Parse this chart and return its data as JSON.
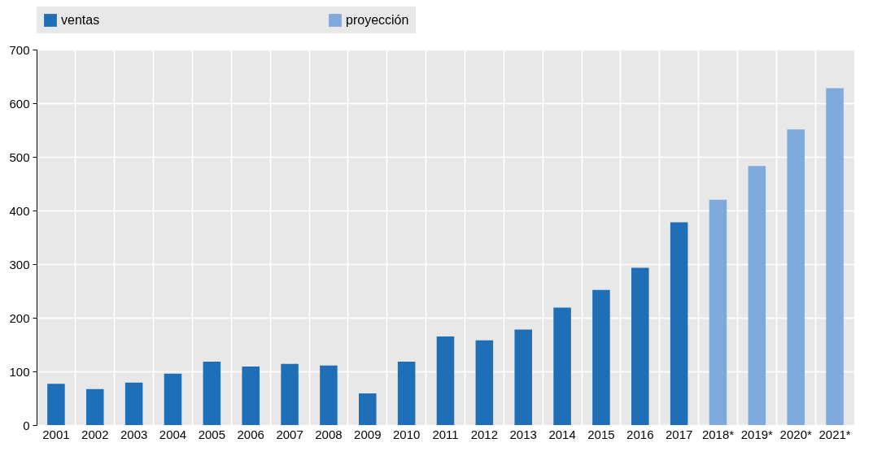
{
  "chart_data": {
    "type": "bar",
    "categories": [
      "2001",
      "2002",
      "2003",
      "2004",
      "2005",
      "2006",
      "2007",
      "2008",
      "2009",
      "2010",
      "2011",
      "2012",
      "2013",
      "2014",
      "2015",
      "2016",
      "2017",
      "2018*",
      "2019*",
      "2020*",
      "2021*"
    ],
    "series": [
      {
        "name": "ventas",
        "color": "#1f6fb8",
        "values": [
          77,
          67,
          79,
          96,
          118,
          109,
          114,
          111,
          59,
          118,
          165,
          158,
          178,
          219,
          252,
          293,
          378,
          null,
          null,
          null,
          null
        ]
      },
      {
        "name": "proyección",
        "color": "#80a9dc",
        "values": [
          null,
          null,
          null,
          null,
          null,
          null,
          null,
          null,
          null,
          null,
          null,
          null,
          null,
          null,
          null,
          null,
          null,
          420,
          483,
          551,
          628
        ]
      }
    ],
    "ylim": [
      0,
      700
    ],
    "yticks": [
      0,
      100,
      200,
      300,
      400,
      500,
      600,
      700
    ],
    "grid": true,
    "legend": "top"
  }
}
